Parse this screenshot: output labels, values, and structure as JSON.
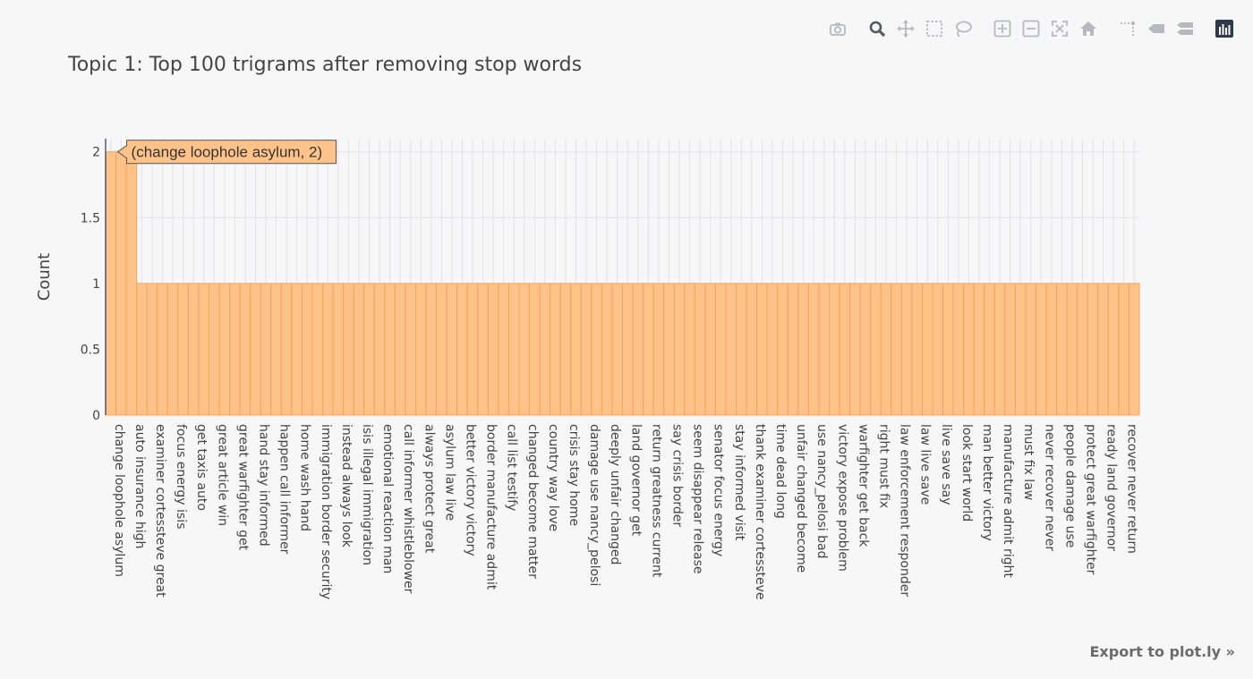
{
  "modebar": {
    "buttons": [
      {
        "icon": "camera-icon",
        "name": "download-plot-button",
        "group": 0,
        "active": false
      },
      {
        "icon": "zoom-icon",
        "name": "zoom-button",
        "group": 1,
        "active": true
      },
      {
        "icon": "pan-icon",
        "name": "pan-button",
        "group": 1,
        "active": false
      },
      {
        "icon": "box-select-icon",
        "name": "box-select-button",
        "group": 1,
        "active": false
      },
      {
        "icon": "lasso-select-icon",
        "name": "lasso-select-button",
        "group": 1,
        "active": false
      },
      {
        "icon": "zoom-in-icon",
        "name": "zoom-in-button",
        "group": 2,
        "active": false
      },
      {
        "icon": "zoom-out-icon",
        "name": "zoom-out-button",
        "group": 2,
        "active": false
      },
      {
        "icon": "autoscale-icon",
        "name": "autoscale-button",
        "group": 2,
        "active": false
      },
      {
        "icon": "home-icon",
        "name": "reset-axes-button",
        "group": 2,
        "active": false
      },
      {
        "icon": "spike-lines-icon",
        "name": "toggle-spike-lines-button",
        "group": 3,
        "active": false
      },
      {
        "icon": "hover-closest-icon",
        "name": "hover-closest-button",
        "group": 3,
        "active": false
      },
      {
        "icon": "hover-compare-icon",
        "name": "hover-compare-button",
        "group": 3,
        "active": false
      },
      {
        "icon": "plotly-logo-icon",
        "name": "plotly-logo-button",
        "group": 4,
        "active": false
      }
    ]
  },
  "export_link": "Export to plot.ly »",
  "tooltip": "(change loophole asylum, 2)",
  "colors": {
    "bar_fill": "#ffc38a",
    "bar_line": "#f6a35c",
    "grid": "#e2e3e8",
    "text": "#444444",
    "tooltip_fill": "#ffc38a",
    "tooltip_border": "#555555"
  },
  "chart_data": {
    "type": "bar",
    "title": "Topic 1: Top 100 trigrams after removing stop words",
    "xlabel": "",
    "ylabel": "Count",
    "ylim": [
      0,
      2.1
    ],
    "yticks": [
      0,
      0.5,
      1,
      1.5,
      2
    ],
    "ytick_labels": [
      "0",
      "0.5",
      "1",
      "1.5",
      "2"
    ],
    "grid": true,
    "legend": "none",
    "categories": [
      "change loophole asylum",
      "",
      "auto insurance high",
      "",
      "examiner cortessteve great",
      "",
      "focus energy isis",
      "",
      "get taxis auto",
      "",
      "great article win",
      "",
      "great warfighter get",
      "",
      "hand stay informed",
      "",
      "happen call informer",
      "",
      "home wash hand",
      "",
      "immigration border security",
      "",
      "instead always look",
      "",
      "isis illegal immigration",
      "",
      "emotional reaction man",
      "",
      "call informer whistleblower",
      "",
      "always protect great",
      "",
      "asylum law live",
      "",
      "better victory victory",
      "",
      "border manufacture admit",
      "",
      "call list testify",
      "",
      "changed become matter",
      "",
      "country way love",
      "",
      "crisis stay home",
      "",
      "damage use nancy_pelosi",
      "",
      "deeply unfair changed",
      "",
      "land governor get",
      "",
      "return greatness current",
      "",
      "say crisis border",
      "",
      "seem disappear release",
      "",
      "senator focus energy",
      "",
      "stay informed visit",
      "",
      "thank examiner cortessteve",
      "",
      "time dead long",
      "",
      "unfair changed become",
      "",
      "use nancy_pelosi bad",
      "",
      "victory expose problem",
      "",
      "warfighter get back",
      "",
      "right must fix",
      "",
      "law enforcement responder",
      "",
      "law live save",
      "",
      "live save say",
      "",
      "look start world",
      "",
      "man better victory",
      "",
      "manufacture admit right",
      "",
      "must fix law",
      "",
      "never recover never",
      "",
      "people damage use",
      "",
      "protect great warfighter",
      "",
      "ready land governor",
      "",
      "recover never return",
      ""
    ],
    "values": [
      2,
      2,
      2,
      1,
      1,
      1,
      1,
      1,
      1,
      1,
      1,
      1,
      1,
      1,
      1,
      1,
      1,
      1,
      1,
      1,
      1,
      1,
      1,
      1,
      1,
      1,
      1,
      1,
      1,
      1,
      1,
      1,
      1,
      1,
      1,
      1,
      1,
      1,
      1,
      1,
      1,
      1,
      1,
      1,
      1,
      1,
      1,
      1,
      1,
      1,
      1,
      1,
      1,
      1,
      1,
      1,
      1,
      1,
      1,
      1,
      1,
      1,
      1,
      1,
      1,
      1,
      1,
      1,
      1,
      1,
      1,
      1,
      1,
      1,
      1,
      1,
      1,
      1,
      1,
      1,
      1,
      1,
      1,
      1,
      1,
      1,
      1,
      1,
      1,
      1,
      1,
      1,
      1,
      1,
      1,
      1,
      1,
      1,
      1,
      1
    ]
  }
}
